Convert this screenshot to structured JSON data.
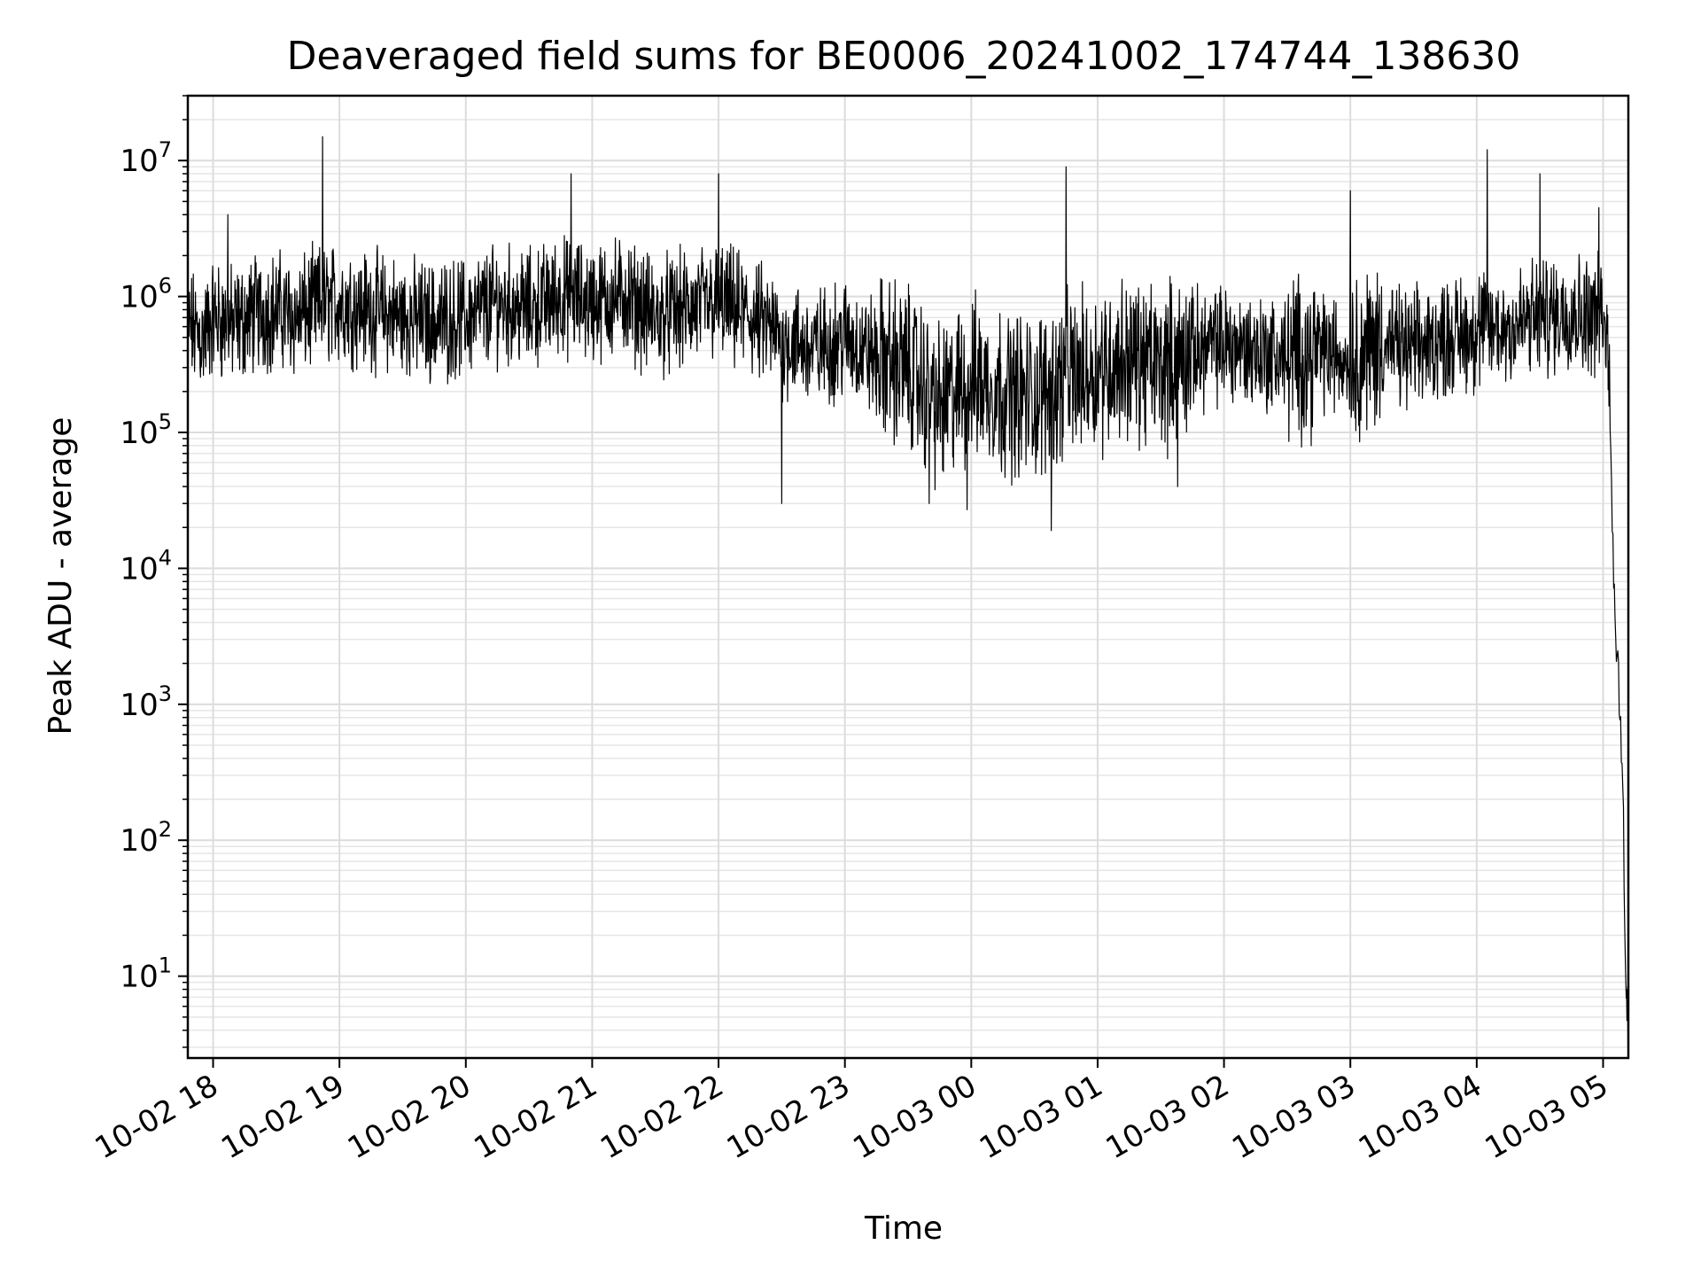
{
  "chart_data": {
    "type": "line",
    "title": "Deaveraged field sums for BE0006_20241002_174744_138630",
    "xlabel": "Time",
    "ylabel": "Peak ADU - average",
    "yscale": "log",
    "ylim": [
      2.5,
      30000000
    ],
    "xlim": [
      "2024-10-02 17:48",
      "2024-10-03 05:12"
    ],
    "grid": true,
    "line_color": "#000000",
    "x_ticks": [
      {
        "value": "2024-10-02 18:00",
        "label": "10-02 18"
      },
      {
        "value": "2024-10-02 19:00",
        "label": "10-02 19"
      },
      {
        "value": "2024-10-02 20:00",
        "label": "10-02 20"
      },
      {
        "value": "2024-10-02 21:00",
        "label": "10-02 21"
      },
      {
        "value": "2024-10-02 22:00",
        "label": "10-02 22"
      },
      {
        "value": "2024-10-02 23:00",
        "label": "10-02 23"
      },
      {
        "value": "2024-10-03 00:00",
        "label": "10-03 00"
      },
      {
        "value": "2024-10-03 01:00",
        "label": "10-03 01"
      },
      {
        "value": "2024-10-03 02:00",
        "label": "10-03 02"
      },
      {
        "value": "2024-10-03 03:00",
        "label": "10-03 03"
      },
      {
        "value": "2024-10-03 04:00",
        "label": "10-03 04"
      },
      {
        "value": "2024-10-03 05:00",
        "label": "10-03 05"
      }
    ],
    "y_ticks": [
      {
        "value": 10,
        "base": "10",
        "exp": "1"
      },
      {
        "value": 100,
        "base": "10",
        "exp": "2"
      },
      {
        "value": 1000,
        "base": "10",
        "exp": "3"
      },
      {
        "value": 10000,
        "base": "10",
        "exp": "4"
      },
      {
        "value": 100000,
        "base": "10",
        "exp": "5"
      },
      {
        "value": 1000000,
        "base": "10",
        "exp": "6"
      },
      {
        "value": 10000000,
        "base": "10",
        "exp": "7"
      }
    ],
    "series": [
      {
        "values_note_free": true,
        "x": [
          "2024-10-02 17:48",
          "2024-10-02 17:55",
          "2024-10-02 18:00",
          "2024-10-02 18:10",
          "2024-10-02 18:20",
          "2024-10-02 18:30",
          "2024-10-02 18:40",
          "2024-10-02 18:50",
          "2024-10-02 19:00",
          "2024-10-02 19:15",
          "2024-10-02 19:30",
          "2024-10-02 19:45",
          "2024-10-02 20:00",
          "2024-10-02 20:15",
          "2024-10-02 20:30",
          "2024-10-02 20:45",
          "2024-10-02 21:00",
          "2024-10-02 21:15",
          "2024-10-02 21:30",
          "2024-10-02 21:45",
          "2024-10-02 22:00",
          "2024-10-02 22:15",
          "2024-10-02 22:30",
          "2024-10-02 22:45",
          "2024-10-02 23:00",
          "2024-10-02 23:15",
          "2024-10-02 23:30",
          "2024-10-02 23:45",
          "2024-10-03 00:00",
          "2024-10-03 00:15",
          "2024-10-03 00:30",
          "2024-10-03 00:45",
          "2024-10-03 01:00",
          "2024-10-03 01:15",
          "2024-10-03 01:30",
          "2024-10-03 01:45",
          "2024-10-03 02:00",
          "2024-10-03 02:15",
          "2024-10-03 02:30",
          "2024-10-03 02:45",
          "2024-10-03 03:00",
          "2024-10-03 03:15",
          "2024-10-03 03:30",
          "2024-10-03 03:45",
          "2024-10-03 04:00",
          "2024-10-03 04:15",
          "2024-10-03 04:30",
          "2024-10-03 04:45",
          "2024-10-03 05:00",
          "2024-10-03 05:03",
          "2024-10-03 05:05",
          "2024-10-03 05:07",
          "2024-10-03 05:09",
          "2024-10-03 05:11",
          "2024-10-03 05:12"
        ],
        "values": [
          600000,
          500000,
          700000,
          600000,
          750000,
          800000,
          700000,
          850000,
          900000,
          800000,
          700000,
          650000,
          700000,
          900000,
          800000,
          1000000,
          900000,
          1000000,
          700000,
          800000,
          900000,
          700000,
          500000,
          400000,
          500000,
          350000,
          300000,
          150000,
          250000,
          200000,
          180000,
          250000,
          300000,
          350000,
          300000,
          400000,
          450000,
          400000,
          350000,
          400000,
          350000,
          450000,
          400000,
          500000,
          550000,
          600000,
          700000,
          800000,
          700000,
          300000,
          10000,
          2000,
          500,
          5,
          5
        ]
      }
    ],
    "spikes": [
      {
        "x": "2024-10-02 18:07",
        "y": 4000000
      },
      {
        "x": "2024-10-02 18:52",
        "y": 15000000
      },
      {
        "x": "2024-10-02 20:50",
        "y": 8000000
      },
      {
        "x": "2024-10-02 22:00",
        "y": 8000000
      },
      {
        "x": "2024-10-03 00:45",
        "y": 9000000
      },
      {
        "x": "2024-10-03 03:00",
        "y": 6000000
      },
      {
        "x": "2024-10-03 04:05",
        "y": 12000000
      },
      {
        "x": "2024-10-03 04:30",
        "y": 8000000
      },
      {
        "x": "2024-10-03 04:58",
        "y": 4500000
      }
    ],
    "dips": [
      {
        "x": "2024-10-02 22:30",
        "y": 30000
      },
      {
        "x": "2024-10-02 23:40",
        "y": 30000
      },
      {
        "x": "2024-10-02 23:58",
        "y": 27000
      },
      {
        "x": "2024-10-03 00:38",
        "y": 19000
      },
      {
        "x": "2024-10-03 01:38",
        "y": 40000
      }
    ]
  }
}
